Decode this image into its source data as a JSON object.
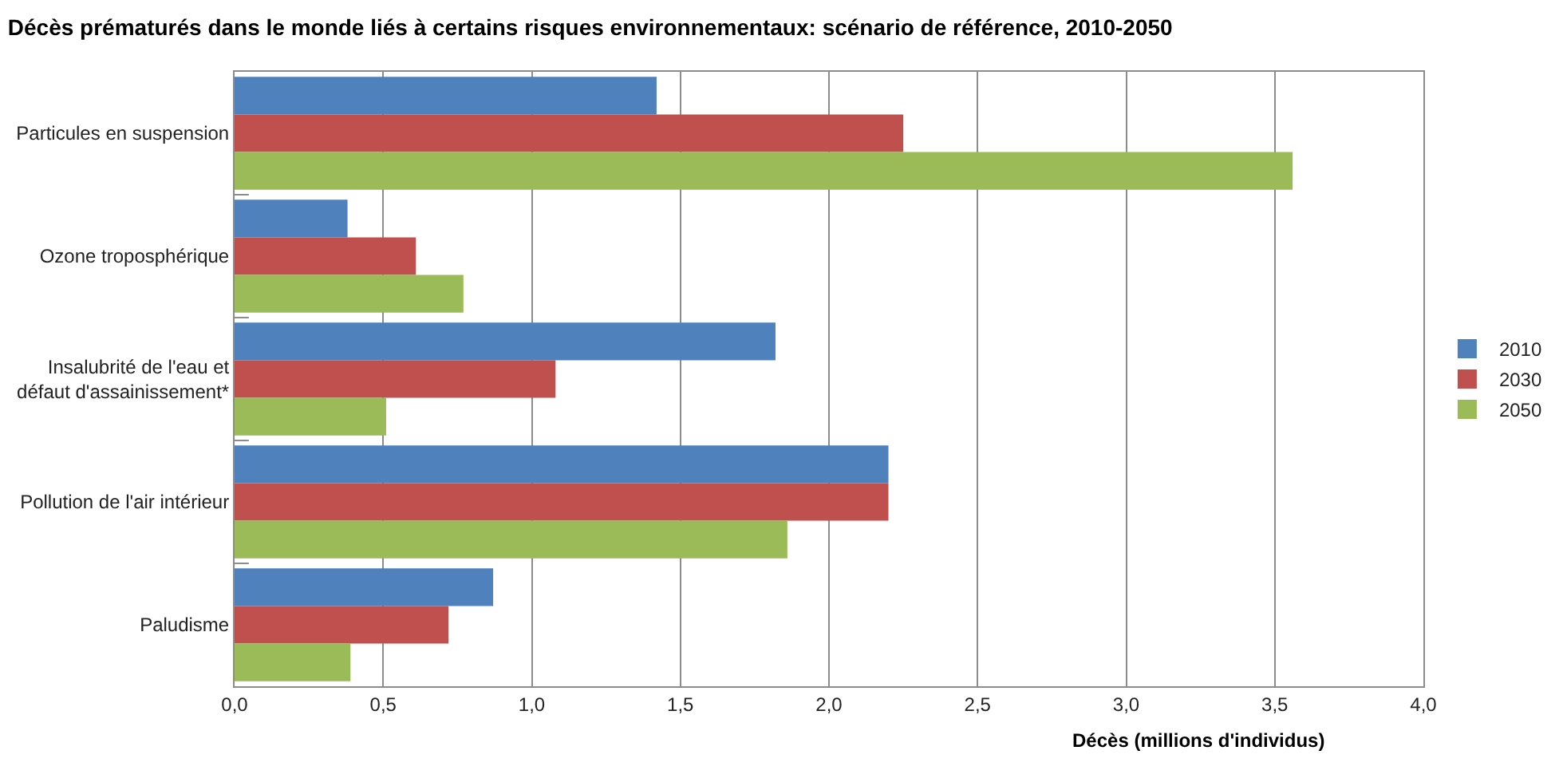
{
  "chart_data": {
    "type": "bar",
    "orientation": "horizontal",
    "title": "Décès prématurés dans le monde liés à certains risques environnementaux: scénario de référence, 2010-2050",
    "xlabel": "Décès (millions d'individus)",
    "categories": [
      "Particules en suspension",
      "Ozone troposphérique",
      "Insalubrité de l'eau et défaut d'assainissement*",
      "Pollution de l'air intérieur",
      "Paludisme"
    ],
    "series": [
      {
        "name": "2010",
        "color": "#4f81bd",
        "values": [
          1.42,
          0.38,
          1.82,
          2.2,
          0.87
        ]
      },
      {
        "name": "2030",
        "color": "#c0504d",
        "values": [
          2.25,
          0.61,
          1.08,
          2.2,
          0.72
        ]
      },
      {
        "name": "2050",
        "color": "#9bbb59",
        "values": [
          3.56,
          0.77,
          0.51,
          1.86,
          0.39
        ]
      }
    ],
    "xlim": [
      0,
      4
    ],
    "xticks": [
      {
        "value": 0,
        "label": "0,0"
      },
      {
        "value": 0.5,
        "label": "0,5"
      },
      {
        "value": 1,
        "label": "1,0"
      },
      {
        "value": 1.5,
        "label": "1,5"
      },
      {
        "value": 2,
        "label": "2,0"
      },
      {
        "value": 2.5,
        "label": "2,5"
      },
      {
        "value": 3,
        "label": "3,0"
      },
      {
        "value": 3.5,
        "label": "3,5"
      },
      {
        "value": 4,
        "label": "4,0"
      }
    ],
    "grid": "x",
    "legend": "right"
  }
}
